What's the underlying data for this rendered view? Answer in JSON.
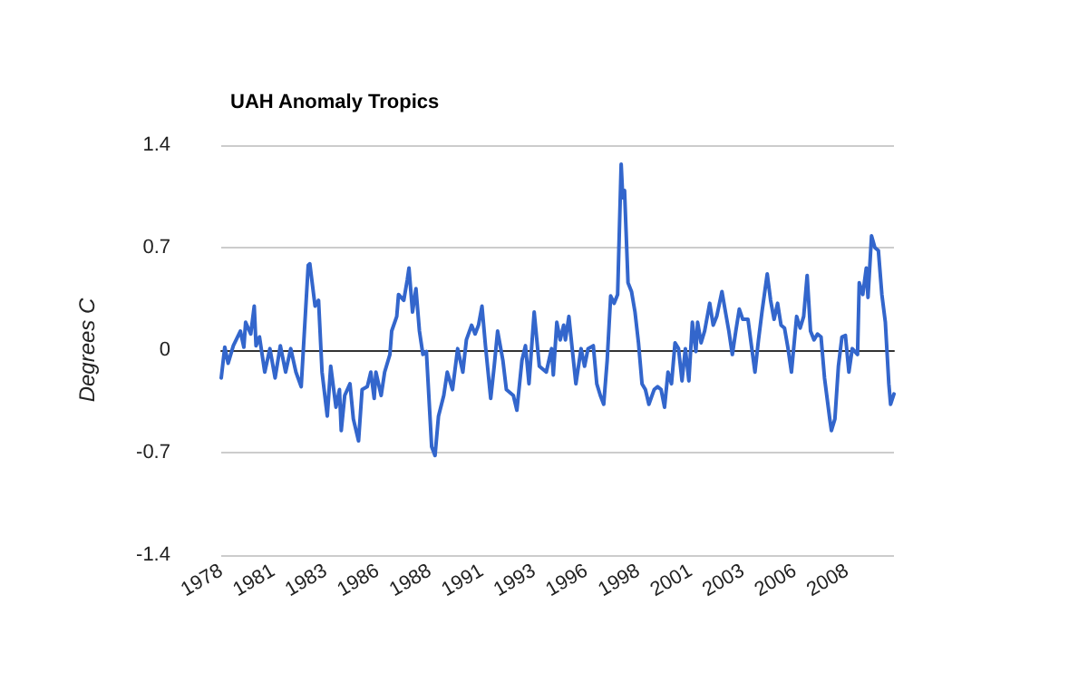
{
  "chart_data": {
    "type": "line",
    "title": "UAH Anomaly Tropics",
    "ylabel": "Degrees C",
    "x": [
      "1978-12",
      "1979-02",
      "1979-04",
      "1979-07",
      "1979-11",
      "1980-01",
      "1980-02",
      "1980-05",
      "1980-07",
      "1980-08",
      "1980-10",
      "1981-01",
      "1981-04",
      "1981-07",
      "1981-10",
      "1982-01",
      "1982-04",
      "1982-07",
      "1982-10",
      "1983-02",
      "1983-03",
      "1983-06",
      "1983-08",
      "1983-10",
      "1984-01",
      "1984-03",
      "1984-06",
      "1984-08",
      "1984-09",
      "1984-11",
      "1985-02",
      "1985-04",
      "1985-07",
      "1985-09",
      "1985-12",
      "1986-02",
      "1986-04",
      "1986-05",
      "1986-08",
      "1986-10",
      "1987-01",
      "1987-02",
      "1987-05",
      "1987-06",
      "1987-09",
      "1987-11",
      "1987-12",
      "1988-02",
      "1988-04",
      "1988-06",
      "1988-08",
      "1988-10",
      "1989-01",
      "1989-03",
      "1989-05",
      "1989-08",
      "1989-10",
      "1990-01",
      "1990-04",
      "1990-07",
      "1990-09",
      "1990-12",
      "1991-02",
      "1991-04",
      "1991-06",
      "1991-08",
      "1991-11",
      "1992-01",
      "1992-03",
      "1992-06",
      "1992-08",
      "1992-12",
      "1993-02",
      "1993-05",
      "1993-07",
      "1993-09",
      "1993-12",
      "1994-03",
      "1994-05",
      "1994-07",
      "1994-10",
      "1994-11",
      "1995-01",
      "1995-03",
      "1995-05",
      "1995-06",
      "1995-08",
      "1995-09",
      "1995-12",
      "1996-03",
      "1996-05",
      "1996-07",
      "1996-10",
      "1996-12",
      "1997-02",
      "1997-04",
      "1997-06",
      "1997-08",
      "1997-10",
      "1997-12",
      "1998-02",
      "1998-03",
      "1998-04",
      "1998-06",
      "1998-08",
      "1998-10",
      "1998-12",
      "1999-02",
      "1999-04",
      "1999-06",
      "1999-09",
      "1999-11",
      "2000-01",
      "2000-03",
      "2000-05",
      "2000-07",
      "2000-09",
      "2000-11",
      "2001-01",
      "2001-03",
      "2001-05",
      "2001-07",
      "2001-09",
      "2001-10",
      "2001-12",
      "2002-02",
      "2002-05",
      "2002-07",
      "2002-09",
      "2002-12",
      "2003-02",
      "2003-04",
      "2003-06",
      "2003-08",
      "2003-10",
      "2003-12",
      "2004-03",
      "2004-05",
      "2004-07",
      "2004-09",
      "2004-11",
      "2005-02",
      "2005-04",
      "2005-06",
      "2005-08",
      "2005-10",
      "2005-12",
      "2006-02",
      "2006-04",
      "2006-07",
      "2006-09",
      "2006-11",
      "2007-01",
      "2007-03",
      "2007-05",
      "2007-07",
      "2007-09",
      "2007-11",
      "2008-02",
      "2008-03",
      "2008-05",
      "2008-07",
      "2008-09",
      "2008-11",
      "2009-01",
      "2009-03",
      "2009-06",
      "2009-07",
      "2009-09",
      "2009-11",
      "2009-12",
      "2010-02",
      "2010-04",
      "2010-06",
      "2010-08",
      "2010-10",
      "2010-12",
      "2011-01",
      "2011-03"
    ],
    "series": [
      {
        "color": "#3366cc",
        "values": [
          -0.19,
          0.02,
          -0.09,
          0.03,
          0.13,
          0.02,
          0.19,
          0.11,
          0.3,
          0.03,
          0.09,
          -0.15,
          0.01,
          -0.19,
          0.03,
          -0.15,
          0.01,
          -0.15,
          -0.25,
          0.58,
          0.59,
          0.3,
          0.34,
          -0.15,
          -0.45,
          -0.11,
          -0.39,
          -0.27,
          -0.55,
          -0.31,
          -0.23,
          -0.47,
          -0.62,
          -0.27,
          -0.25,
          -0.15,
          -0.33,
          -0.15,
          -0.31,
          -0.15,
          -0.03,
          0.13,
          0.23,
          0.38,
          0.34,
          0.48,
          0.56,
          0.26,
          0.42,
          0.13,
          -0.03,
          -0.01,
          -0.66,
          -0.72,
          -0.45,
          -0.31,
          -0.15,
          -0.27,
          0.01,
          -0.15,
          0.07,
          0.17,
          0.11,
          0.17,
          0.3,
          0.03,
          -0.33,
          -0.11,
          0.13,
          -0.07,
          -0.27,
          -0.31,
          -0.41,
          -0.07,
          0.03,
          -0.23,
          0.26,
          -0.11,
          -0.13,
          -0.15,
          0.01,
          -0.17,
          0.19,
          0.07,
          0.17,
          0.07,
          0.23,
          0.11,
          -0.23,
          0.01,
          -0.11,
          0.01,
          0.03,
          -0.23,
          -0.31,
          -0.37,
          -0.07,
          0.37,
          0.32,
          0.38,
          1.27,
          1.04,
          1.09,
          0.46,
          0.4,
          0.26,
          0.05,
          -0.23,
          -0.27,
          -0.37,
          -0.27,
          -0.25,
          -0.27,
          -0.39,
          -0.15,
          -0.23,
          0.05,
          0.01,
          -0.21,
          0.01,
          -0.21,
          0.19,
          -0.01,
          0.19,
          0.05,
          0.13,
          0.32,
          0.17,
          0.23,
          0.4,
          0.26,
          0.13,
          -0.03,
          0.13,
          0.28,
          0.21,
          0.21,
          0.03,
          -0.15,
          0.07,
          0.26,
          0.52,
          0.34,
          0.21,
          0.32,
          0.17,
          0.15,
          0.01,
          -0.15,
          0.23,
          0.15,
          0.23,
          0.51,
          0.13,
          0.07,
          0.11,
          0.09,
          -0.19,
          -0.47,
          -0.55,
          -0.47,
          -0.11,
          0.09,
          0.1,
          -0.15,
          0.01,
          -0.03,
          0.46,
          0.38,
          0.56,
          0.36,
          0.78,
          0.7,
          0.68,
          0.38,
          0.19,
          -0.23,
          -0.37,
          -0.3
        ]
      }
    ],
    "xlim": [
      "1978-12",
      "2011-03"
    ],
    "xticks": [
      {
        "value": "1978-12",
        "label": "1978"
      },
      {
        "value": "1981-06",
        "label": "1981"
      },
      {
        "value": "1983-12",
        "label": "1983"
      },
      {
        "value": "1986-06",
        "label": "1986"
      },
      {
        "value": "1988-12",
        "label": "1988"
      },
      {
        "value": "1991-06",
        "label": "1991"
      },
      {
        "value": "1993-12",
        "label": "1993"
      },
      {
        "value": "1996-06",
        "label": "1996"
      },
      {
        "value": "1998-12",
        "label": "1998"
      },
      {
        "value": "2001-06",
        "label": "2001"
      },
      {
        "value": "2003-12",
        "label": "2003"
      },
      {
        "value": "2006-06",
        "label": "2006"
      },
      {
        "value": "2008-12",
        "label": "2008"
      }
    ],
    "ylim": [
      -1.4,
      1.4
    ],
    "yticks": [
      -1.4,
      -0.7,
      0,
      0.7,
      1.4
    ],
    "grid": "y",
    "marker": "none",
    "line_style": "solid"
  }
}
